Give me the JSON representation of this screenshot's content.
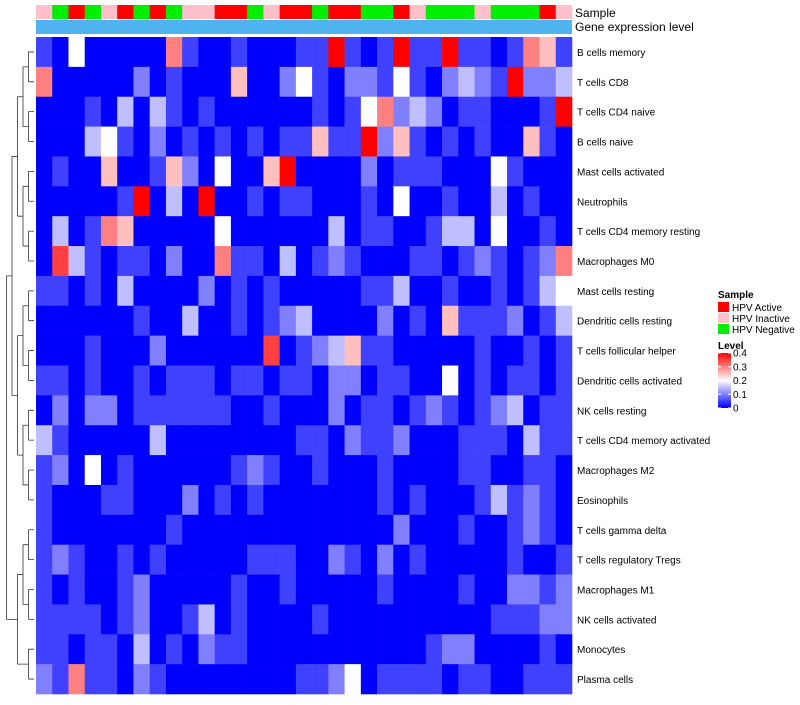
{
  "chart_data": {
    "type": "heatmap",
    "annotation_titles": {
      "sample": "Sample",
      "expression": "Gene expression level"
    },
    "sample_groups": [
      "Inactive",
      "Negative",
      "Active",
      "Negative",
      "Inactive",
      "Active",
      "Negative",
      "Active",
      "Negative",
      "Inactive",
      "Inactive",
      "Active",
      "Active",
      "Negative",
      "Inactive",
      "Active",
      "Active",
      "Negative",
      "Active",
      "Active",
      "Negative",
      "Negative",
      "Active",
      "Inactive",
      "Negative",
      "Negative",
      "Negative",
      "Inactive",
      "Negative",
      "Negative",
      "Negative",
      "Active",
      "Inactive"
    ],
    "rows": [
      "B cells memory",
      "T cells CD8",
      "T cells CD4 naive",
      "B cells naive",
      "Mast cells activated",
      "Neutrophils",
      "T cells CD4 memory resting",
      "Macrophages M0",
      "Mast cells resting",
      "Dendritic cells resting",
      "T cells follicular helper",
      "Dendritic cells activated",
      "NK cells resting",
      "T cells CD4 memory activated",
      "Macrophages M2",
      "Eosinophils",
      "T cells gamma delta",
      "T cells regulatory  Tregs",
      "Macrophages M1",
      "NK cells activated",
      "Monocytes",
      "Plasma cells"
    ],
    "values": [
      [
        0.05,
        0,
        0.2,
        0,
        0,
        0,
        0,
        0,
        0.3,
        0.05,
        0,
        0,
        0.05,
        0,
        0,
        0,
        0.05,
        0.05,
        0.4,
        0.05,
        0,
        0.05,
        0.4,
        0.05,
        0.05,
        0.4,
        0.05,
        0.05,
        0,
        0.05,
        0.3,
        0.25,
        0.05
      ],
      [
        0.3,
        0,
        0,
        0,
        0,
        0,
        0.1,
        0,
        0.05,
        0,
        0,
        0,
        0.25,
        0,
        0,
        0.1,
        0.2,
        0.05,
        0,
        0.1,
        0.1,
        0.05,
        0.2,
        0.05,
        0,
        0.1,
        0.15,
        0.1,
        0.05,
        0.4,
        0.1,
        0.1,
        0.15
      ],
      [
        0,
        0,
        0,
        0.05,
        0,
        0.15,
        0,
        0.15,
        0.05,
        0,
        0.05,
        0,
        0,
        0,
        0,
        0,
        0,
        0.05,
        0,
        0.05,
        0.2,
        0.3,
        0.1,
        0.15,
        0.1,
        0,
        0.05,
        0.05,
        0,
        0,
        0,
        0.05,
        0.4
      ],
      [
        0,
        0,
        0,
        0.15,
        0.2,
        0.05,
        0,
        0.1,
        0,
        0.05,
        0,
        0.05,
        0,
        0.05,
        0,
        0.05,
        0.05,
        0.25,
        0.05,
        0.05,
        0.4,
        0.1,
        0.25,
        0.05,
        0,
        0.05,
        0,
        0.05,
        0,
        0,
        0.25,
        0.05,
        0
      ],
      [
        0,
        0.05,
        0,
        0,
        0.25,
        0,
        0,
        0.05,
        0.25,
        0.1,
        0,
        0.2,
        0,
        0,
        0.25,
        0.4,
        0,
        0,
        0,
        0,
        0.1,
        0,
        0.05,
        0.05,
        0.05,
        0,
        0,
        0,
        0.2,
        0.05,
        0,
        0,
        0
      ],
      [
        0,
        0,
        0,
        0,
        0,
        0.05,
        0.4,
        0,
        0.15,
        0,
        0.4,
        0,
        0,
        0.05,
        0,
        0.05,
        0.05,
        0,
        0,
        0,
        0.05,
        0,
        0.2,
        0,
        0,
        0.05,
        0,
        0,
        0.15,
        0,
        0.05,
        0,
        0
      ],
      [
        0,
        0.15,
        0,
        0.05,
        0.3,
        0.25,
        0,
        0,
        0,
        0,
        0,
        0.2,
        0,
        0,
        0,
        0,
        0,
        0,
        0.15,
        0,
        0.05,
        0.05,
        0,
        0,
        0.05,
        0.15,
        0.15,
        0,
        0.2,
        0,
        0,
        0.05,
        0
      ],
      [
        0,
        0.35,
        0.15,
        0.05,
        0,
        0.05,
        0.05,
        0,
        0.1,
        0,
        0,
        0.3,
        0.05,
        0.05,
        0,
        0.15,
        0,
        0.05,
        0.1,
        0.05,
        0,
        0,
        0,
        0.05,
        0.05,
        0,
        0.05,
        0.1,
        0.05,
        0,
        0.05,
        0.1,
        0.3
      ],
      [
        0.05,
        0.05,
        0,
        0.05,
        0,
        0.15,
        0,
        0,
        0,
        0,
        0.1,
        0,
        0.05,
        0,
        0.05,
        0,
        0,
        0,
        0,
        0,
        0.05,
        0.05,
        0.15,
        0,
        0,
        0.05,
        0,
        0,
        0.05,
        0,
        0.05,
        0.15,
        0.2
      ],
      [
        0,
        0,
        0,
        0,
        0,
        0,
        0.05,
        0,
        0,
        0.15,
        0,
        0,
        0.05,
        0,
        0.05,
        0.1,
        0.15,
        0,
        0,
        0,
        0,
        0.1,
        0,
        0.05,
        0,
        0.25,
        0.05,
        0.05,
        0.05,
        0.1,
        0,
        0.05,
        0.15
      ],
      [
        0,
        0,
        0,
        0.05,
        0,
        0,
        0,
        0.1,
        0,
        0,
        0,
        0,
        0,
        0,
        0.35,
        0,
        0.05,
        0.1,
        0.15,
        0.25,
        0.05,
        0.05,
        0,
        0,
        0,
        0,
        0,
        0.05,
        0,
        0,
        0.05,
        0,
        0.05
      ],
      [
        0.05,
        0.05,
        0,
        0.05,
        0,
        0,
        0.05,
        0,
        0.05,
        0.05,
        0.05,
        0,
        0.05,
        0.05,
        0,
        0.05,
        0.05,
        0,
        0.1,
        0.1,
        0,
        0.05,
        0.05,
        0,
        0,
        0.2,
        0,
        0.05,
        0,
        0.05,
        0.05,
        0,
        0.05
      ],
      [
        0,
        0.1,
        0,
        0.1,
        0.1,
        0,
        0.05,
        0.05,
        0.05,
        0.05,
        0.05,
        0.05,
        0,
        0,
        0.05,
        0,
        0,
        0,
        0.1,
        0,
        0.05,
        0.05,
        0,
        0.05,
        0.1,
        0.05,
        0,
        0.05,
        0.1,
        0.15,
        0,
        0.05,
        0.05
      ],
      [
        0.15,
        0.05,
        0,
        0,
        0,
        0,
        0,
        0.15,
        0,
        0,
        0,
        0,
        0,
        0,
        0,
        0,
        0.05,
        0.05,
        0,
        0.1,
        0.05,
        0.05,
        0.1,
        0,
        0,
        0,
        0.05,
        0.05,
        0.05,
        0,
        0.15,
        0.05,
        0.05
      ],
      [
        0.05,
        0.1,
        0,
        0.2,
        0,
        0.05,
        0,
        0,
        0,
        0,
        0,
        0,
        0.05,
        0.1,
        0.05,
        0,
        0,
        0.05,
        0,
        0,
        0,
        0.05,
        0,
        0,
        0,
        0,
        0.05,
        0.05,
        0,
        0,
        0.05,
        0.05,
        0
      ],
      [
        0.05,
        0,
        0,
        0,
        0.05,
        0.05,
        0,
        0,
        0,
        0.1,
        0,
        0.05,
        0,
        0.05,
        0,
        0,
        0,
        0,
        0,
        0,
        0,
        0.05,
        0,
        0.05,
        0,
        0,
        0,
        0.05,
        0.15,
        0.05,
        0.1,
        0.05,
        0
      ],
      [
        0.05,
        0,
        0,
        0,
        0,
        0,
        0,
        0,
        0.05,
        0,
        0,
        0,
        0,
        0,
        0,
        0,
        0,
        0,
        0,
        0,
        0,
        0,
        0.1,
        0,
        0,
        0,
        0.05,
        0,
        0,
        0.05,
        0.1,
        0.05,
        0
      ],
      [
        0.05,
        0.1,
        0.05,
        0,
        0,
        0.05,
        0,
        0.05,
        0,
        0,
        0,
        0,
        0,
        0.05,
        0.05,
        0.05,
        0,
        0,
        0.1,
        0.05,
        0,
        0.1,
        0,
        0.05,
        0,
        0,
        0,
        0,
        0,
        0.05,
        0,
        0,
        0.05
      ],
      [
        0.05,
        0,
        0.05,
        0,
        0,
        0.05,
        0.1,
        0,
        0,
        0,
        0,
        0,
        0.05,
        0,
        0,
        0.05,
        0,
        0,
        0,
        0,
        0,
        0.05,
        0,
        0,
        0,
        0,
        0.05,
        0,
        0,
        0.1,
        0.1,
        0.05,
        0.1
      ],
      [
        0.05,
        0.05,
        0.05,
        0.05,
        0,
        0.05,
        0.1,
        0,
        0,
        0.05,
        0.15,
        0,
        0.05,
        0,
        0,
        0,
        0,
        0.05,
        0,
        0,
        0,
        0,
        0,
        0,
        0,
        0,
        0,
        0,
        0.05,
        0.05,
        0.05,
        0.1,
        0.1
      ],
      [
        0.05,
        0.05,
        0,
        0.05,
        0.05,
        0,
        0.15,
        0,
        0.05,
        0,
        0.1,
        0.05,
        0.05,
        0,
        0,
        0,
        0,
        0,
        0,
        0,
        0,
        0,
        0,
        0,
        0.05,
        0.1,
        0.1,
        0,
        0,
        0,
        0,
        0.05,
        0
      ],
      [
        0.1,
        0.05,
        0.3,
        0.05,
        0.05,
        0,
        0.1,
        0.05,
        0,
        0,
        0,
        0,
        0,
        0,
        0,
        0,
        0.05,
        0.05,
        0.1,
        0.2,
        0,
        0.05,
        0.05,
        0.05,
        0.05,
        0,
        0.05,
        0.05,
        0,
        0,
        0.05,
        0.05,
        0.05
      ]
    ],
    "legend": {
      "sample_title": "Sample",
      "sample_entries": [
        {
          "label": "HPV Active",
          "color": "#ff0000",
          "key": "Active"
        },
        {
          "label": "HPV Inactive",
          "color": "#ffc0cb",
          "key": "Inactive"
        },
        {
          "label": "HPV Negative",
          "color": "#00ee00",
          "key": "Negative"
        }
      ],
      "level_title": "Level",
      "level_ticks": [
        "0.4",
        "0.3",
        "0.2",
        "0.1",
        "0"
      ],
      "level_range": [
        0,
        0.4
      ]
    },
    "expression_bar_color": "#4fb3f0",
    "colorscale": {
      "low": "#0000ff",
      "mid": "#ffffff",
      "high": "#ff0000",
      "mid_value": 0.2
    },
    "dendrogram": "rows-left"
  }
}
